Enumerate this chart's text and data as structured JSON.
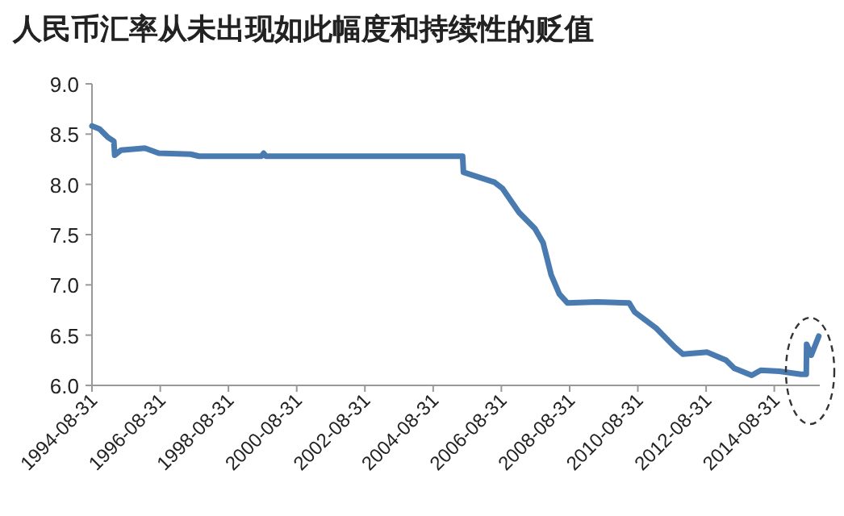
{
  "chart_data": {
    "type": "line",
    "title": "人民币汇率从未出现如此幅度和持续性的贬值",
    "x": [
      "1994-08-31",
      "1994-11-20",
      "1995-02-15",
      "1995-04-22",
      "1995-05-01",
      "1995-07-08",
      "1996-03-20",
      "1996-08-15",
      "1997-07-22",
      "1997-10-20",
      "1999-08-20",
      "1999-09-12",
      "1999-10-05",
      "2005-07-12",
      "2005-07-21",
      "2006-06-20",
      "2006-09-12",
      "2007-03-08",
      "2007-08-25",
      "2007-11-20",
      "2008-02-15",
      "2008-05-12",
      "2008-08-08",
      "2009-06-18",
      "2010-05-30",
      "2010-07-28",
      "2011-03-15",
      "2011-10-01",
      "2011-12-28",
      "2012-09-12",
      "2013-04-01",
      "2013-06-28",
      "2014-01-01",
      "2014-04-08",
      "2014-10-25",
      "2015-06-12",
      "2015-08-08",
      "2015-08-12",
      "2015-10-01",
      "2015-12-20"
    ],
    "series": [
      {
        "color": "#4a7bb0",
        "values": [
          8.58,
          8.55,
          8.47,
          8.43,
          8.29,
          8.34,
          8.36,
          8.31,
          8.3,
          8.28,
          8.28,
          8.31,
          8.28,
          8.28,
          8.12,
          8.02,
          7.96,
          7.72,
          7.56,
          7.42,
          7.1,
          6.91,
          6.82,
          6.83,
          6.82,
          6.73,
          6.57,
          6.38,
          6.31,
          6.33,
          6.25,
          6.17,
          6.1,
          6.15,
          6.14,
          6.11,
          6.11,
          6.41,
          6.3,
          6.49
        ]
      }
    ],
    "xlim": [
      "1994-08-31",
      "2015-12-31"
    ],
    "xticks": [
      "1994-08-31",
      "1996-08-31",
      "1998-08-31",
      "2000-08-31",
      "2002-08-31",
      "2004-08-31",
      "2006-08-31",
      "2008-08-31",
      "2010-08-31",
      "2012-08-31",
      "2014-08-31"
    ],
    "ylim": [
      6.0,
      9.0
    ],
    "yticks": [
      {
        "value": 6,
        "label": "6.0"
      },
      {
        "value": 6.5,
        "label": "6.5"
      },
      {
        "value": 7,
        "label": "7.0"
      },
      {
        "value": 7.5,
        "label": "7.5"
      },
      {
        "value": 8,
        "label": "8.0"
      },
      {
        "value": 8.5,
        "label": "8.5"
      },
      {
        "value": 9,
        "label": "9.0"
      }
    ]
  }
}
